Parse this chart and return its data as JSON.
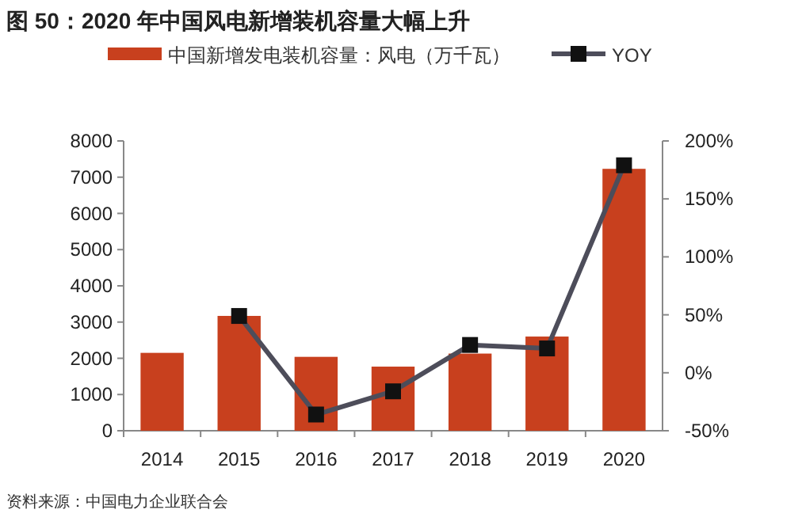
{
  "chart_data": {
    "type": "bar",
    "title": "图 50：2020 年中国风电新增装机容量大幅上升",
    "categories": [
      "2014",
      "2015",
      "2016",
      "2017",
      "2018",
      "2019",
      "2020"
    ],
    "series": [
      {
        "name": "中国新增发电装机容量：风电（万千瓦）",
        "color": "#c8401e",
        "values": [
          2150,
          3170,
          2040,
          1770,
          2130,
          2600,
          7230
        ]
      },
      {
        "name": "YOY",
        "type": "line",
        "axis": "y2",
        "color": "#4d4d5a",
        "marker": "square",
        "values": [
          null,
          49,
          -36,
          -16,
          24,
          21,
          179
        ]
      }
    ],
    "ylim": [
      0,
      8000
    ],
    "yticks": [
      0,
      1000,
      2000,
      3000,
      4000,
      5000,
      6000,
      7000,
      8000
    ],
    "y2lim": [
      -50,
      200
    ],
    "y2ticks": [
      {
        "value": -50,
        "label": "-50%"
      },
      {
        "value": 0,
        "label": "0%"
      },
      {
        "value": 50,
        "label": "50%"
      },
      {
        "value": 100,
        "label": "100%"
      },
      {
        "value": 150,
        "label": "150%"
      },
      {
        "value": 200,
        "label": "200%"
      }
    ],
    "legend": "top",
    "grid": false,
    "annotations": [
      "资料来源：中国电力企业联合会"
    ]
  }
}
